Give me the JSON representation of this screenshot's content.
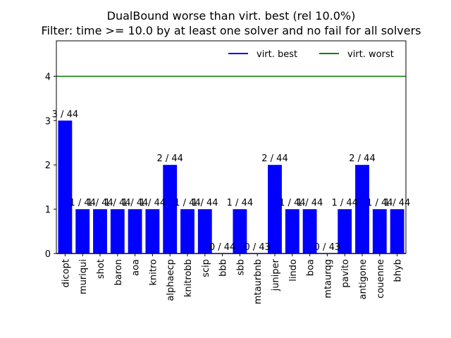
{
  "chart_data": {
    "type": "bar",
    "title": "DualBound worse than virt. best (rel 10.0%)",
    "subtitle": "Filter: time >= 10.0 by at least one solver and no fail for all solvers",
    "xlabel": "",
    "ylabel": "",
    "ylim": [
      0,
      4.8
    ],
    "yticks": [
      0,
      1,
      2,
      3,
      4
    ],
    "grid": false,
    "legend_position": "top-right",
    "categories": [
      "dicopt",
      "muriqui",
      "shot",
      "baron",
      "aoa",
      "knitro",
      "alphaecp",
      "knitrobb",
      "scip",
      "bbb",
      "sbb",
      "mtaurbnb",
      "juniper",
      "lindo",
      "boa",
      "mtaurqg",
      "pavito",
      "antigone",
      "couenne",
      "bhyb"
    ],
    "values": [
      3,
      1,
      1,
      1,
      1,
      1,
      2,
      1,
      1,
      0,
      1,
      0,
      2,
      1,
      1,
      0,
      1,
      2,
      1,
      1
    ],
    "bar_labels": [
      "3 / 44",
      "1 / 44",
      "1 / 44",
      "1 / 44",
      "1 / 44",
      "1 / 44",
      "2 / 44",
      "1 / 44",
      "1 / 44",
      "0 / 44",
      "1 / 44",
      "0 / 43",
      "2 / 44",
      "1 / 44",
      "1 / 44",
      "0 / 43",
      "1 / 44",
      "2 / 44",
      "1 / 44",
      "1 / 44"
    ],
    "bar_color": "#0000ff",
    "reference_lines": [
      {
        "name": "virt. best",
        "value": 0,
        "color": "#0000ff"
      },
      {
        "name": "virt. worst",
        "value": 4,
        "color": "#008000"
      }
    ]
  }
}
